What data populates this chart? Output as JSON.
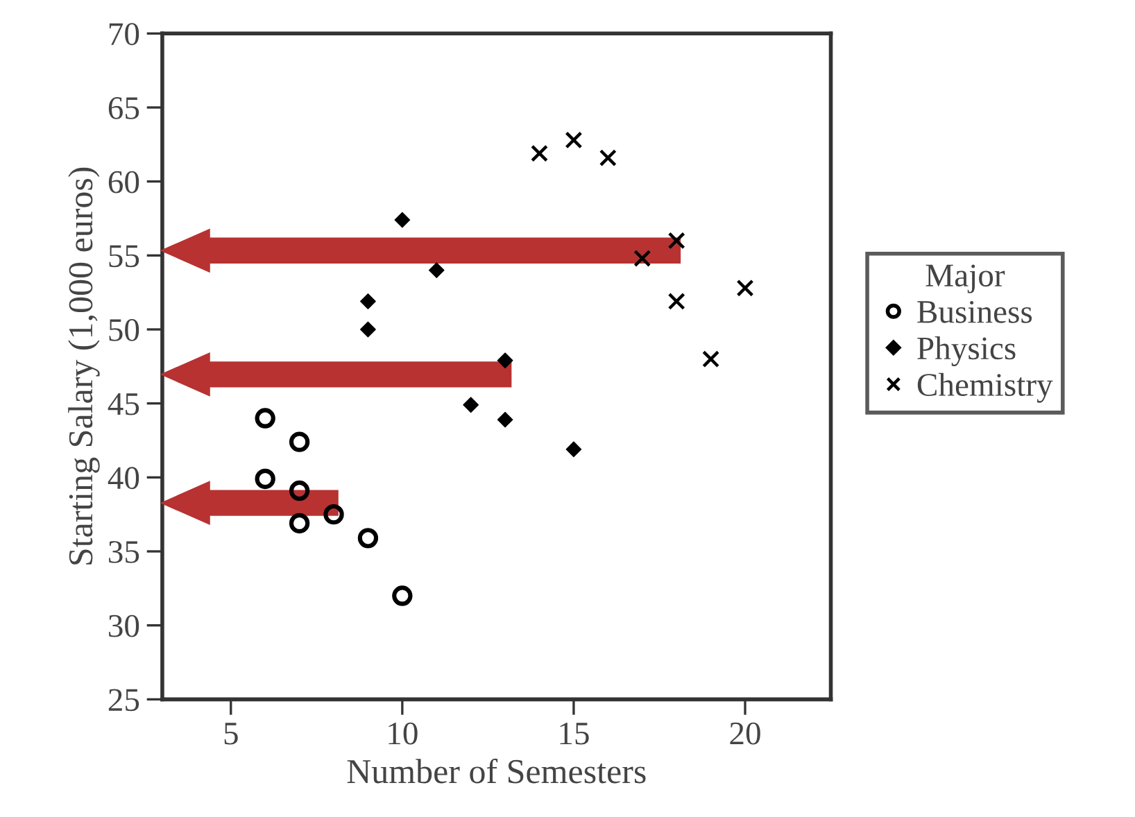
{
  "chart_data": {
    "type": "scatter",
    "xlabel": "Number of Semesters",
    "ylabel": "Starting Salary (1,000 euros)",
    "legend_title": "Major",
    "legend": "right",
    "xlim": [
      3,
      22.5
    ],
    "xticks": [
      5,
      10,
      15,
      20
    ],
    "ylim": [
      25,
      70
    ],
    "yticks": [
      25,
      30,
      35,
      40,
      45,
      50,
      55,
      60,
      65,
      70
    ],
    "grid": false,
    "series": [
      {
        "name": "Business",
        "color": "#000000",
        "marker": "circle",
        "x": [
          6,
          7,
          6,
          7,
          7,
          8,
          9,
          10
        ],
        "values": [
          44.0,
          42.4,
          39.9,
          39.1,
          36.9,
          37.5,
          35.9,
          32.0
        ]
      },
      {
        "name": "Physics",
        "color": "#000000",
        "marker": "diamond",
        "x": [
          10,
          11,
          9,
          9,
          13,
          12,
          13,
          15
        ],
        "values": [
          57.4,
          54.0,
          51.9,
          50.0,
          47.9,
          44.9,
          43.9,
          41.9
        ]
      },
      {
        "name": "Chemistry",
        "color": "#000000",
        "marker": "cross",
        "x": [
          14,
          15,
          16,
          18,
          17,
          18,
          20,
          19
        ],
        "values": [
          61.9,
          62.8,
          61.6,
          56.0,
          54.8,
          51.9,
          52.8,
          48.0
        ]
      }
    ]
  }
}
